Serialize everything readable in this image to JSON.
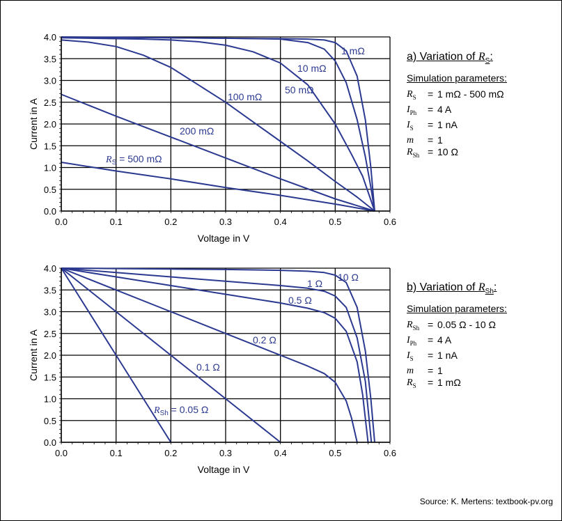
{
  "source": "Source: K. Mertens: textbook-pv.org",
  "colors": {
    "curve": "#2b3990",
    "grid": "#000000"
  },
  "panels": [
    {
      "heading_label": "a) Variation of ",
      "heading_symbol": "R",
      "heading_sub": "S",
      "sim_title": "Simulation parameters:",
      "params": [
        {
          "sym": "R",
          "sub": "S",
          "value": "1 mΩ - 500 mΩ"
        },
        {
          "sym": "I",
          "sub": "Ph",
          "value": "4 A"
        },
        {
          "sym": "I",
          "sub": "S",
          "value": "1 nA"
        },
        {
          "sym": "m",
          "sub": "",
          "value": "1"
        },
        {
          "sym": "R",
          "sub": "Sh",
          "value": "10 Ω"
        }
      ]
    },
    {
      "heading_label": "b) Variation of ",
      "heading_symbol": "R",
      "heading_sub": "Sh",
      "sim_title": "Simulation parameters:",
      "params": [
        {
          "sym": "R",
          "sub": "Sh",
          "value": "0.05 Ω - 10 Ω"
        },
        {
          "sym": "I",
          "sub": "Ph",
          "value": "4 A"
        },
        {
          "sym": "I",
          "sub": "S",
          "value": "1 nA"
        },
        {
          "sym": "m",
          "sub": "",
          "value": "1"
        },
        {
          "sym": "R",
          "sub": "S",
          "value": "1 mΩ"
        }
      ]
    }
  ],
  "chart_data": [
    {
      "type": "line",
      "xlabel": "Voltage in V",
      "ylabel": "Current in A",
      "xlim": [
        0,
        0.6
      ],
      "ylim": [
        0,
        4
      ],
      "xticks": [
        "0.0",
        "0.1",
        "0.2",
        "0.3",
        "0.4",
        "0.5",
        "0.6"
      ],
      "yticks": [
        "0.0",
        "0.5",
        "1.0",
        "1.5",
        "2.0",
        "2.5",
        "3.0",
        "3.5",
        "4.0"
      ],
      "grid": true,
      "series": [
        {
          "name": "1 mΩ",
          "label_prefix": "",
          "label_sub": "",
          "label": "1 mΩ",
          "x": [
            0,
            0.1,
            0.2,
            0.3,
            0.4,
            0.45,
            0.48,
            0.5,
            0.52,
            0.54,
            0.555,
            0.565,
            0.572
          ],
          "y": [
            3.998,
            3.99,
            3.98,
            3.97,
            3.96,
            3.95,
            3.93,
            3.87,
            3.68,
            3.1,
            2.1,
            1.0,
            0.0
          ]
        },
        {
          "name": "10 mΩ",
          "label_prefix": "",
          "label_sub": "",
          "label": "10 mΩ",
          "x": [
            0,
            0.1,
            0.2,
            0.3,
            0.4,
            0.45,
            0.48,
            0.5,
            0.52,
            0.54,
            0.555,
            0.565,
            0.572
          ],
          "y": [
            3.996,
            3.99,
            3.98,
            3.97,
            3.95,
            3.87,
            3.72,
            3.45,
            2.95,
            2.1,
            1.25,
            0.55,
            0.0
          ]
        },
        {
          "name": "50 mΩ",
          "label_prefix": "",
          "label_sub": "",
          "label": "50 mΩ",
          "x": [
            0,
            0.05,
            0.1,
            0.15,
            0.2,
            0.25,
            0.3,
            0.35,
            0.4,
            0.45,
            0.5,
            0.53,
            0.55,
            0.572
          ],
          "y": [
            3.98,
            3.97,
            3.96,
            3.95,
            3.93,
            3.89,
            3.81,
            3.66,
            3.4,
            2.9,
            2.0,
            1.3,
            0.8,
            0.0
          ]
        },
        {
          "name": "100 mΩ",
          "label_prefix": "",
          "label_sub": "",
          "label": "100 mΩ",
          "x": [
            0,
            0.05,
            0.1,
            0.15,
            0.2,
            0.25,
            0.3,
            0.35,
            0.4,
            0.45,
            0.5,
            0.54,
            0.572
          ],
          "y": [
            3.93,
            3.88,
            3.78,
            3.58,
            3.3,
            2.9,
            2.5,
            2.05,
            1.6,
            1.15,
            0.68,
            0.32,
            0.0
          ]
        },
        {
          "name": "200 mΩ",
          "label_prefix": "",
          "label_sub": "",
          "label": "200 mΩ",
          "x": [
            0,
            0.1,
            0.2,
            0.3,
            0.4,
            0.5,
            0.572
          ],
          "y": [
            2.68,
            2.18,
            1.7,
            1.22,
            0.74,
            0.28,
            0.0
          ]
        },
        {
          "name": "500 mΩ",
          "label_prefix": "R",
          "label_sub": "S",
          "label": " = 500 mΩ",
          "x": [
            0,
            0.1,
            0.2,
            0.3,
            0.4,
            0.5,
            0.572
          ],
          "y": [
            1.12,
            0.92,
            0.74,
            0.54,
            0.36,
            0.16,
            0.0
          ]
        }
      ]
    },
    {
      "type": "line",
      "xlabel": "Voltage in V",
      "ylabel": "Current in A",
      "xlim": [
        0,
        0.6
      ],
      "ylim": [
        0,
        4
      ],
      "xticks": [
        "0.0",
        "0.1",
        "0.2",
        "0.3",
        "0.4",
        "0.5",
        "0.6"
      ],
      "yticks": [
        "0.0",
        "0.5",
        "1.0",
        "1.5",
        "2.0",
        "2.5",
        "3.0",
        "3.5",
        "4.0"
      ],
      "grid": true,
      "series": [
        {
          "name": "10 Ω",
          "label_prefix": "",
          "label_sub": "",
          "label": "10 Ω",
          "x": [
            0,
            0.1,
            0.2,
            0.3,
            0.4,
            0.45,
            0.48,
            0.5,
            0.52,
            0.54,
            0.555,
            0.565,
            0.572
          ],
          "y": [
            4.0,
            3.99,
            3.98,
            3.97,
            3.95,
            3.93,
            3.9,
            3.84,
            3.67,
            3.1,
            2.1,
            1.0,
            0.0
          ]
        },
        {
          "name": "1 Ω",
          "label_prefix": "",
          "label_sub": "",
          "label": "1 Ω",
          "x": [
            0,
            0.1,
            0.2,
            0.3,
            0.4,
            0.45,
            0.48,
            0.5,
            0.52,
            0.54,
            0.555,
            0.566
          ],
          "y": [
            4.0,
            3.9,
            3.8,
            3.7,
            3.6,
            3.54,
            3.47,
            3.36,
            3.1,
            2.4,
            1.4,
            0.0
          ]
        },
        {
          "name": "0.5 Ω",
          "label_prefix": "",
          "label_sub": "",
          "label": "0.5 Ω",
          "x": [
            0,
            0.1,
            0.2,
            0.3,
            0.4,
            0.45,
            0.48,
            0.5,
            0.52,
            0.54,
            0.55,
            0.56
          ],
          "y": [
            4.0,
            3.8,
            3.6,
            3.4,
            3.2,
            3.08,
            2.98,
            2.85,
            2.55,
            1.85,
            1.1,
            0.0
          ]
        },
        {
          "name": "0.2 Ω",
          "label_prefix": "",
          "label_sub": "",
          "label": "0.2 Ω",
          "x": [
            0,
            0.1,
            0.2,
            0.3,
            0.4,
            0.45,
            0.48,
            0.5,
            0.52,
            0.53,
            0.54
          ],
          "y": [
            4.0,
            3.5,
            3.0,
            2.5,
            2.0,
            1.75,
            1.58,
            1.38,
            0.95,
            0.55,
            0.0
          ]
        },
        {
          "name": "0.1 Ω",
          "label_prefix": "",
          "label_sub": "",
          "label": "0.1 Ω",
          "x": [
            0,
            0.1,
            0.2,
            0.3,
            0.4
          ],
          "y": [
            4.0,
            3.0,
            2.0,
            1.0,
            0.0
          ]
        },
        {
          "name": "0.05 Ω",
          "label_prefix": "R",
          "label_sub": "Sh",
          "label": " = 0.05 Ω",
          "x": [
            0,
            0.1,
            0.2
          ],
          "y": [
            4.0,
            2.0,
            0.0
          ]
        }
      ]
    }
  ]
}
